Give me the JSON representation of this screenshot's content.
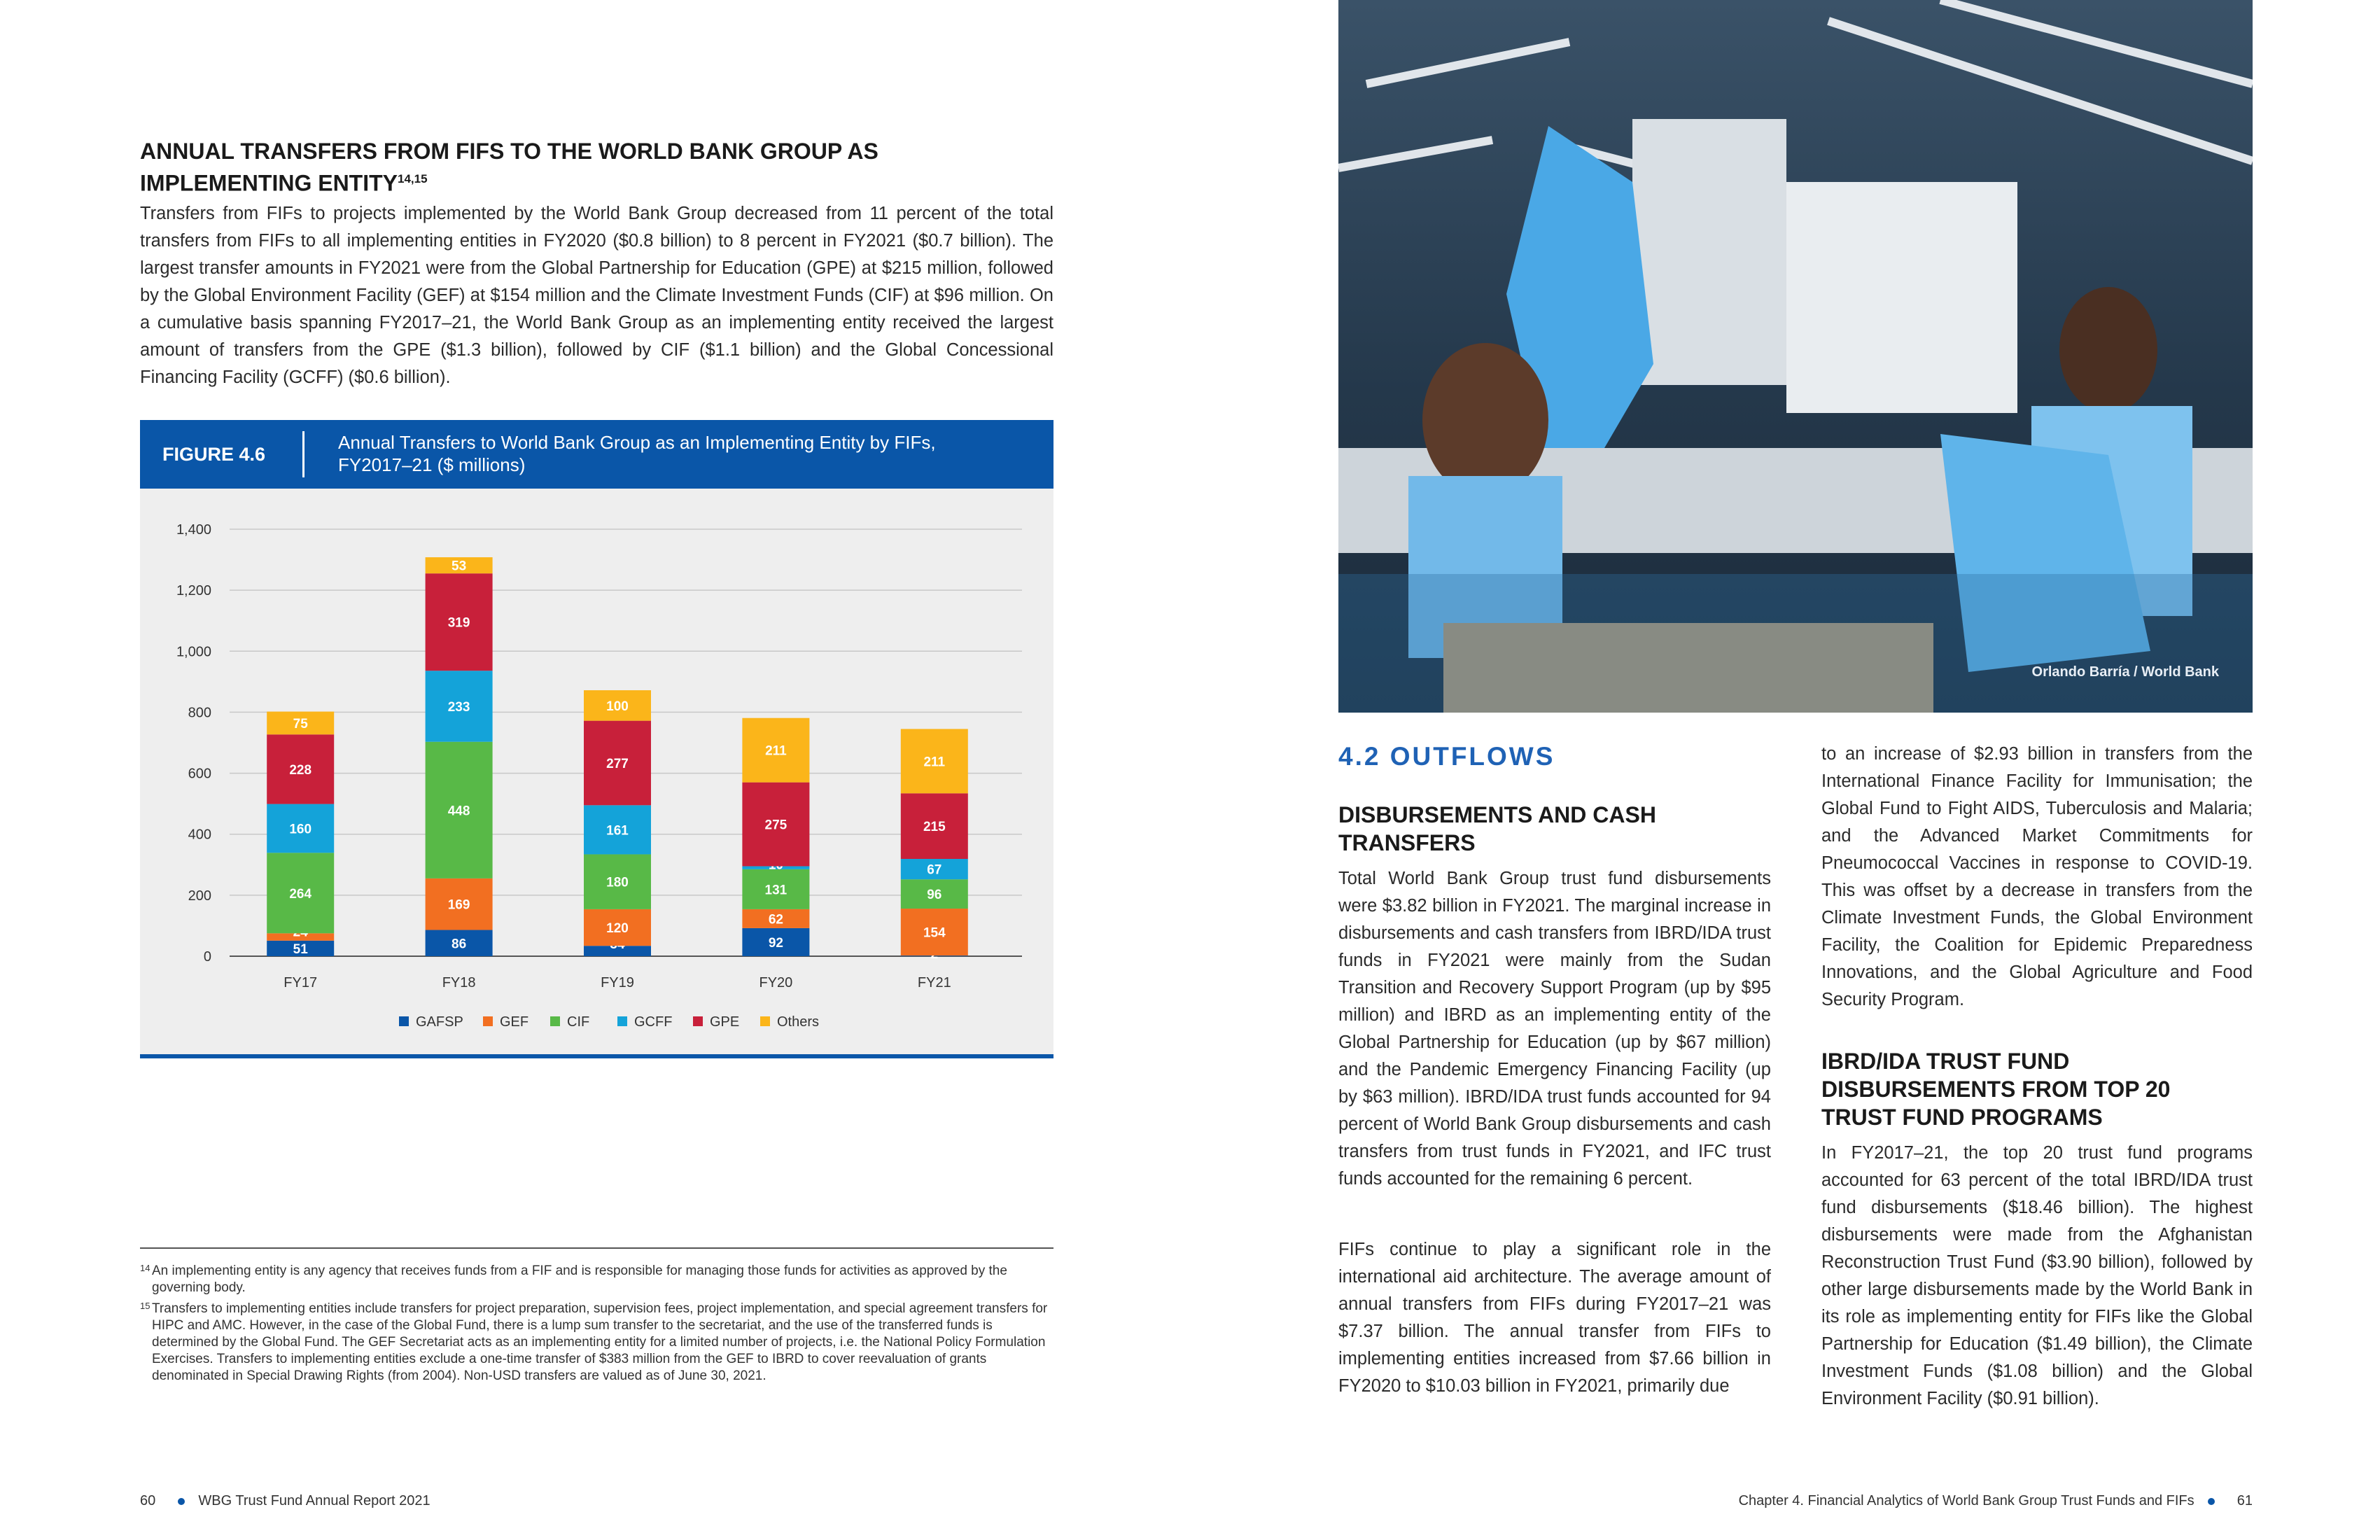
{
  "left_page": {
    "section_heading": "ANNUAL TRANSFERS FROM FIFS TO THE WORLD BANK GROUP AS IMPLEMENTING ENTITY",
    "section_heading_sup": "14,15",
    "intro_paragraph": "Transfers from FIFs to projects implemented by the World Bank Group decreased from 11 percent of the total transfers from FIFs to all implementing entities in FY2020 ($0.8 billion) to 8 percent in FY2021 ($0.7 billion). The largest transfer amounts in FY2021 were from the Global Partnership for Education (GPE) at $215 million, followed by the Global Environment Facility (GEF) at $154 million and the Climate Investment Funds (CIF) at $96 million. On a cumulative basis spanning FY2017–21, the World Bank Group as an implementing entity received the largest amount of transfers from the GPE ($1.3 billion), followed by CIF ($1.1 billion) and the Global Concessional Financing Facility (GCFF) ($0.6 billion).",
    "figure_label": "FIGURE 4.6",
    "figure_title_line1": "Annual Transfers to World Bank Group as an Implementing Entity by FIFs,",
    "figure_title_line2": "FY2017–21 ($ millions)",
    "footnotes": [
      {
        "num": "14",
        "text": "An implementing entity is any agency that receives funds from a FIF and is responsible for managing those funds for activities as approved by the governing body."
      },
      {
        "num": "15",
        "text": "Transfers to implementing entities include transfers for project preparation, supervision fees, project implementation, and special agreement transfers for HIPC and AMC. However, in the case of the Global Fund, there is a lump sum transfer to the secretariat, and the use of the transferred funds is determined by the Global Fund. The GEF Secretariat acts as an implementing entity for a limited number of projects, i.e. the National Policy Formulation Exercises. Transfers to implementing entities exclude a one-time transfer of $383 million from the GEF to IBRD to cover reevaluation of grants denominated in Special Drawing Rights (from 2004). Non-USD transfers are valued as of June 30, 2021."
      }
    ],
    "page_number": "60",
    "running_title": "WBG Trust Fund Annual Report 2021"
  },
  "chart_data": {
    "type": "bar",
    "stacked": true,
    "categories": [
      "FY17",
      "FY18",
      "FY19",
      "FY20",
      "FY21"
    ],
    "yticks": [
      "0",
      "200",
      "400",
      "600",
      "800",
      "1,000",
      "1,200",
      "1,400"
    ],
    "ylim": [
      0,
      1400
    ],
    "grid": true,
    "legend_position": "bottom",
    "series": [
      {
        "name": "GAFSP",
        "color": "#0a56a8",
        "values": [
          51,
          86,
          34,
          92,
          2
        ]
      },
      {
        "name": "GEF",
        "color": "#f26f21",
        "values": [
          24,
          169,
          120,
          62,
          154
        ]
      },
      {
        "name": "CIF",
        "color": "#58b947",
        "values": [
          264,
          448,
          180,
          131,
          96
        ]
      },
      {
        "name": "GCFF",
        "color": "#14a3d9",
        "values": [
          160,
          233,
          161,
          10,
          67
        ]
      },
      {
        "name": "GPE",
        "color": "#c8203a",
        "values": [
          228,
          319,
          277,
          275,
          215
        ]
      },
      {
        "name": "Others",
        "color": "#fbb51a",
        "values": [
          75,
          53,
          100,
          211,
          211
        ]
      }
    ]
  },
  "right_page": {
    "photo_credit": "Orlando Barría / World Bank",
    "section_title": "4.2 OUTFLOWS",
    "sub1_title_line1": "DISBURSEMENTS AND CASH",
    "sub1_title_line2": "TRANSFERS",
    "col1_para1": "Total World Bank Group trust fund disbursements were $3.82 billion in FY2021. The marginal increase in disbursements and cash transfers from IBRD/IDA trust funds in FY2021 were mainly from the Sudan Transition and Recovery Support Program (up by $95 million) and IBRD as an implementing entity of the Global Partnership for Education (up by $67 million) and the Pandemic Emergency Financing Facility (up by $63 million). IBRD/IDA trust funds accounted for 94 percent of World Bank Group disbursements and cash transfers from trust funds in FY2021, and IFC trust funds accounted for the remaining 6 percent.",
    "col1_para2": "FIFs continue to play a significant role in the international aid architecture. The average amount of annual transfers from FIFs during FY2017–21 was $7.37 billion. The annual transfer from FIFs to implementing entities increased from $7.66 billion in FY2020 to $10.03 billion in FY2021, primarily due",
    "col2_para1": "to an increase of $2.93 billion in transfers from the International Finance Facility for Immunisation; the Global Fund to Fight AIDS, Tuberculosis and Malaria; and the Advanced Market Commitments for Pneumococcal Vaccines in response to COVID-19. This was offset by a decrease in transfers from the Climate Investment Funds, the Global Environment Facility, the Coalition for Epidemic Preparedness Innovations, and the Global Agriculture and Food Security Program.",
    "sub2_title_line1": "IBRD/IDA TRUST FUND",
    "sub2_title_line2": "DISBURSEMENTS FROM TOP 20",
    "sub2_title_line3": "TRUST FUND PROGRAMS",
    "col2_para2": "In FY2017–21, the top 20 trust fund programs accounted for 63 percent of the total IBRD/IDA trust fund disbursements ($18.46 billion). The highest disbursements were made from the Afghanistan Reconstruction Trust Fund ($3.90 billion), followed by other large disbursements made by the World Bank in its role as implementing entity for FIFs like the Global Partnership for Education ($1.49 billion), the Climate Investment Funds ($1.08 billion) and the Global Environment Facility ($0.91 billion).",
    "running_title": "Chapter 4. Financial Analytics of World Bank Group Trust Funds and FIFs",
    "page_number": "61"
  }
}
